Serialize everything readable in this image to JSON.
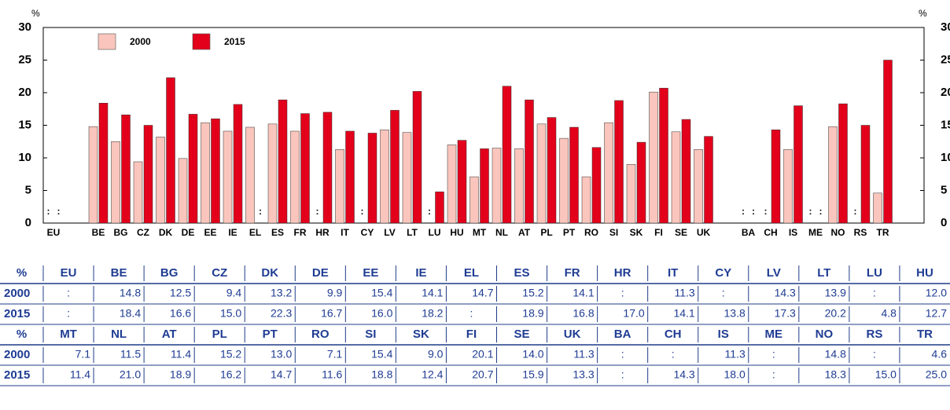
{
  "chart_data": {
    "type": "bar",
    "y_label": "%",
    "categories": [
      "EU",
      "BE",
      "BG",
      "CZ",
      "DK",
      "DE",
      "EE",
      "IE",
      "EL",
      "ES",
      "FR",
      "HR",
      "IT",
      "CY",
      "LV",
      "LT",
      "LU",
      "HU",
      "MT",
      "NL",
      "AT",
      "PL",
      "PT",
      "RO",
      "SI",
      "SK",
      "FI",
      "SE",
      "UK",
      "BA",
      "CH",
      "IS",
      "ME",
      "NO",
      "RS",
      "TR"
    ],
    "series": [
      {
        "name": "2000",
        "color": "#f9c5bc",
        "values": [
          null,
          14.8,
          12.5,
          9.4,
          13.2,
          9.9,
          15.4,
          14.1,
          14.7,
          15.2,
          14.1,
          null,
          11.3,
          null,
          14.3,
          13.9,
          null,
          12.0,
          7.1,
          11.5,
          11.4,
          15.2,
          13.0,
          7.1,
          15.4,
          9.0,
          20.1,
          14.0,
          11.3,
          null,
          null,
          11.3,
          null,
          14.8,
          null,
          4.6
        ],
        "value_labels": [
          ":",
          "14.8",
          "12.5",
          "9.4",
          "13.2",
          "9.9",
          "15.4",
          "14.1",
          "14.7",
          "15.2",
          "14.1",
          ":",
          "11.3",
          ":",
          "14.3",
          "13.9",
          ":",
          "12.0",
          "7.1",
          "11.5",
          "11.4",
          "15.2",
          "13.0",
          "7.1",
          "15.4",
          "9.0",
          "20.1",
          "14.0",
          "11.3",
          ":",
          ":",
          "11.3",
          ":",
          "14.8",
          ":",
          "4.6"
        ]
      },
      {
        "name": "2015",
        "color": "#e3001b",
        "values": [
          null,
          18.4,
          16.6,
          15.0,
          22.3,
          16.7,
          16.0,
          18.2,
          null,
          18.9,
          16.8,
          17.0,
          14.1,
          13.8,
          17.3,
          20.2,
          4.8,
          12.7,
          11.4,
          21.0,
          18.9,
          16.2,
          14.7,
          11.6,
          18.8,
          12.4,
          20.7,
          15.9,
          13.3,
          null,
          14.3,
          18.0,
          null,
          18.3,
          15.0,
          25.0
        ],
        "value_labels": [
          ":",
          "18.4",
          "16.6",
          "15.0",
          "22.3",
          "16.7",
          "16.0",
          "18.2",
          ":",
          "18.9",
          "16.8",
          "17.0",
          "14.1",
          "13.8",
          "17.3",
          "20.2",
          "4.8",
          "12.7",
          "11.4",
          "21.0",
          "18.9",
          "16.2",
          "14.7",
          "11.6",
          "18.8",
          "12.4",
          "20.7",
          "15.9",
          "13.3",
          ":",
          "14.3",
          "18.0",
          ":",
          "18.3",
          "15.0",
          "25.0"
        ]
      }
    ],
    "ylim": [
      0,
      30
    ],
    "yticks": [
      0,
      5,
      10,
      15,
      20,
      25,
      30
    ],
    "y2lim": [
      0,
      30
    ],
    "y2ticks": [
      0,
      5,
      10,
      15,
      20,
      25,
      30
    ],
    "legend": "top-left"
  }
}
